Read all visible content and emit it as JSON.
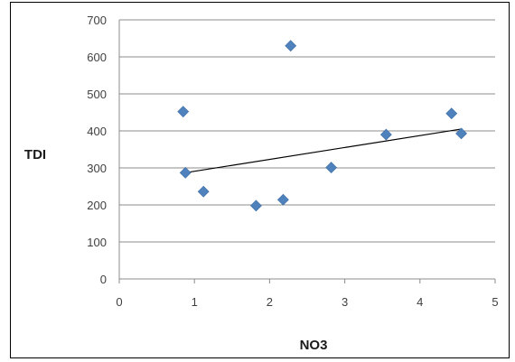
{
  "chart_data": {
    "type": "scatter",
    "title": "",
    "xlabel": "NO3",
    "ylabel": "TDI",
    "xlim": [
      0,
      5
    ],
    "ylim": [
      0,
      700
    ],
    "x_ticks": [
      0,
      1,
      2,
      3,
      4,
      5
    ],
    "y_ticks": [
      0,
      100,
      200,
      300,
      400,
      500,
      600,
      700
    ],
    "grid": "horizontal major gridlines",
    "legend": "none",
    "series": [
      {
        "marker": "diamond",
        "color": "#4f81bd",
        "points": [
          {
            "x": 0.85,
            "y": 452
          },
          {
            "x": 0.88,
            "y": 287
          },
          {
            "x": 1.12,
            "y": 236
          },
          {
            "x": 1.82,
            "y": 198
          },
          {
            "x": 2.18,
            "y": 214
          },
          {
            "x": 2.28,
            "y": 630
          },
          {
            "x": 2.82,
            "y": 301
          },
          {
            "x": 3.55,
            "y": 390
          },
          {
            "x": 4.42,
            "y": 447
          },
          {
            "x": 4.55,
            "y": 393
          }
        ]
      }
    ],
    "trendline": {
      "type": "linear",
      "color": "#000000",
      "from": {
        "x": 0.88,
        "y": 287
      },
      "to": {
        "x": 4.55,
        "y": 405
      }
    }
  }
}
